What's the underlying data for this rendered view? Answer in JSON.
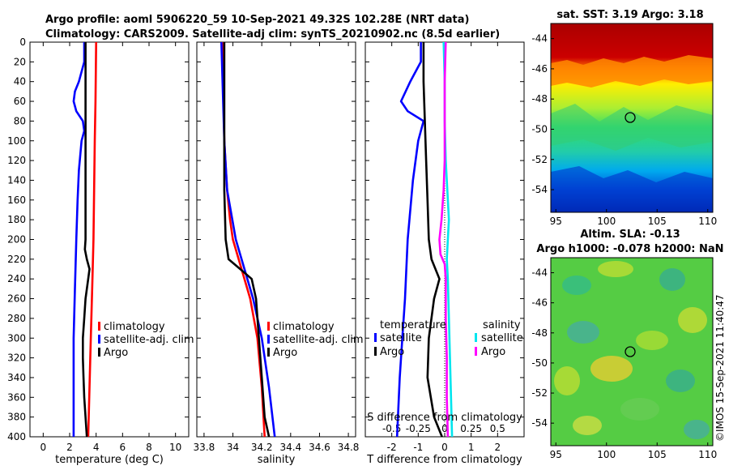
{
  "header": {
    "line1": "Argo profile: aoml 5906220_59 10-Sep-2021 49.32S 102.28E (NRT data)",
    "line2": "Climatology: CARS2009. Satellite-adj clim: synTS_20210902.nc (8.5d earlier)"
  },
  "colors": {
    "climatology": "#ff0000",
    "satellite": "#0000ff",
    "argo": "#000000",
    "sal_satellite": "#00e5ee",
    "sal_argo": "#ff00ff"
  },
  "chart_data": [
    {
      "type": "line",
      "id": "temperature",
      "xlabel": "temperature (deg C)",
      "xlim": [
        -1,
        11
      ],
      "ylim": [
        400,
        0
      ],
      "xticks": [
        0,
        2,
        4,
        6,
        8,
        10
      ],
      "yticks": [
        0,
        20,
        40,
        60,
        80,
        100,
        120,
        140,
        160,
        180,
        200,
        220,
        240,
        260,
        280,
        300,
        320,
        340,
        360,
        380,
        400
      ],
      "legend": [
        "climatology",
        "satellite-adj. clim",
        "Argo"
      ],
      "series": [
        {
          "name": "climatology",
          "color": "#ff0000",
          "depth": [
            0,
            60,
            100,
            150,
            200,
            250,
            300,
            350,
            400
          ],
          "values": [
            4.0,
            3.95,
            3.9,
            3.85,
            3.8,
            3.7,
            3.6,
            3.5,
            3.4
          ]
        },
        {
          "name": "satellite-adj. clim",
          "color": "#0000ff",
          "depth": [
            0,
            20,
            40,
            50,
            60,
            70,
            80,
            90,
            100,
            130,
            160,
            200,
            250,
            300,
            350,
            400
          ],
          "values": [
            3.1,
            3.1,
            2.7,
            2.4,
            2.3,
            2.5,
            3.0,
            3.1,
            2.9,
            2.7,
            2.6,
            2.5,
            2.4,
            2.3,
            2.3,
            2.3
          ]
        },
        {
          "name": "Argo",
          "color": "#000000",
          "depth": [
            0,
            40,
            80,
            120,
            160,
            200,
            210,
            220,
            230,
            240,
            260,
            280,
            300,
            320,
            340,
            360,
            380,
            400
          ],
          "values": [
            3.2,
            3.2,
            3.2,
            3.2,
            3.2,
            3.2,
            3.15,
            3.3,
            3.5,
            3.4,
            3.2,
            3.1,
            3.0,
            3.0,
            3.05,
            3.1,
            3.2,
            3.3
          ]
        }
      ]
    },
    {
      "type": "line",
      "id": "salinity",
      "xlabel": "salinity",
      "xlim": [
        33.75,
        34.85
      ],
      "ylim": [
        400,
        0
      ],
      "xticks": [
        33.8,
        34,
        34.2,
        34.4,
        34.6,
        34.8
      ],
      "legend": [
        "climatology",
        "satellite-adj. clim",
        "Argo"
      ],
      "series": [
        {
          "name": "climatology",
          "color": "#ff0000",
          "depth": [
            0,
            100,
            150,
            180,
            200,
            230,
            260,
            300,
            350,
            400
          ],
          "values": [
            33.93,
            33.94,
            33.96,
            33.98,
            34.0,
            34.06,
            34.12,
            34.17,
            34.2,
            34.22
          ]
        },
        {
          "name": "satellite-adj. clim",
          "color": "#0000ff",
          "depth": [
            0,
            50,
            100,
            150,
            200,
            230,
            260,
            300,
            350,
            400
          ],
          "values": [
            33.92,
            33.93,
            33.94,
            33.96,
            34.02,
            34.08,
            34.14,
            34.2,
            34.25,
            34.29
          ]
        },
        {
          "name": "Argo",
          "color": "#000000",
          "depth": [
            0,
            50,
            100,
            150,
            200,
            220,
            230,
            240,
            260,
            300,
            340,
            380,
            400
          ],
          "values": [
            33.94,
            33.94,
            33.94,
            33.94,
            33.95,
            33.97,
            34.05,
            34.13,
            34.16,
            34.18,
            34.2,
            34.22,
            34.25
          ]
        }
      ]
    },
    {
      "type": "line",
      "id": "difference",
      "xlabel": "T difference from climatology",
      "top_label": "S difference from climatology",
      "xlim": [
        -3,
        3
      ],
      "ylim": [
        400,
        0
      ],
      "xticks": [
        -2,
        -1,
        0,
        1,
        2
      ],
      "top_ticks": [
        "-0.5",
        "-0.25",
        "0",
        "0.25",
        "0.5"
      ],
      "legend_titles": [
        "temperature",
        "salinity"
      ],
      "legend_temperature": [
        "satellite",
        "Argo"
      ],
      "legend_salinity": [
        "satellite",
        "Argo"
      ],
      "series": [
        {
          "name": "temperature satellite",
          "color": "#0000ff",
          "depth": [
            0,
            20,
            40,
            60,
            70,
            80,
            100,
            140,
            200,
            260,
            300,
            340,
            400
          ],
          "values": [
            -0.9,
            -0.9,
            -1.3,
            -1.65,
            -1.4,
            -0.8,
            -1.0,
            -1.2,
            -1.4,
            -1.5,
            -1.6,
            -1.7,
            -1.8
          ]
        },
        {
          "name": "temperature Argo",
          "color": "#000000",
          "depth": [
            0,
            40,
            80,
            120,
            160,
            200,
            220,
            240,
            260,
            300,
            340,
            380,
            400
          ],
          "values": [
            -0.8,
            -0.8,
            -0.75,
            -0.7,
            -0.65,
            -0.6,
            -0.5,
            -0.2,
            -0.4,
            -0.6,
            -0.65,
            -0.4,
            -0.1
          ]
        },
        {
          "name": "salinity satellite",
          "color": "#00e5ee",
          "depth": [
            0,
            40,
            80,
            120,
            160,
            180,
            200,
            220,
            240,
            280,
            320,
            360,
            400
          ],
          "values": [
            -0.01,
            0.0,
            0.0,
            0.01,
            0.03,
            0.04,
            0.03,
            0.02,
            0.03,
            0.04,
            0.05,
            0.06,
            0.07
          ]
        },
        {
          "name": "salinity Argo",
          "color": "#ff00ff",
          "depth": [
            0,
            40,
            80,
            120,
            150,
            180,
            200,
            215,
            225,
            240,
            280,
            320,
            360,
            400
          ],
          "values": [
            0.01,
            0.0,
            0.0,
            0.0,
            -0.01,
            -0.03,
            -0.05,
            -0.04,
            0.0,
            0.01,
            0.01,
            0.02,
            0.02,
            0.03
          ]
        }
      ]
    },
    {
      "type": "heatmap",
      "id": "sst-map",
      "title": "sat. SST: 3.19 Argo: 3.18",
      "xticks": [
        95,
        100,
        105,
        110
      ],
      "yticks": [
        -44,
        -46,
        -48,
        -50,
        -52,
        -54
      ],
      "xlim": [
        94.5,
        110.5
      ],
      "ylim": [
        -55.5,
        -43
      ],
      "marker": {
        "lon": 102.28,
        "lat": -49.32
      }
    },
    {
      "type": "heatmap",
      "id": "sla-map",
      "title": "Altim. SLA: -0.13",
      "subtitle": "Argo h1000: -0.078 h2000: NaN",
      "xticks": [
        95,
        100,
        105,
        110
      ],
      "yticks": [
        -44,
        -46,
        -48,
        -50,
        -52,
        -54
      ],
      "xlim": [
        94.5,
        110.5
      ],
      "ylim": [
        -55.5,
        -43
      ],
      "marker": {
        "lon": 102.28,
        "lat": -49.32
      }
    }
  ],
  "footer": {
    "credit": "©IMOS 15-Sep-2021 11:40:47"
  }
}
